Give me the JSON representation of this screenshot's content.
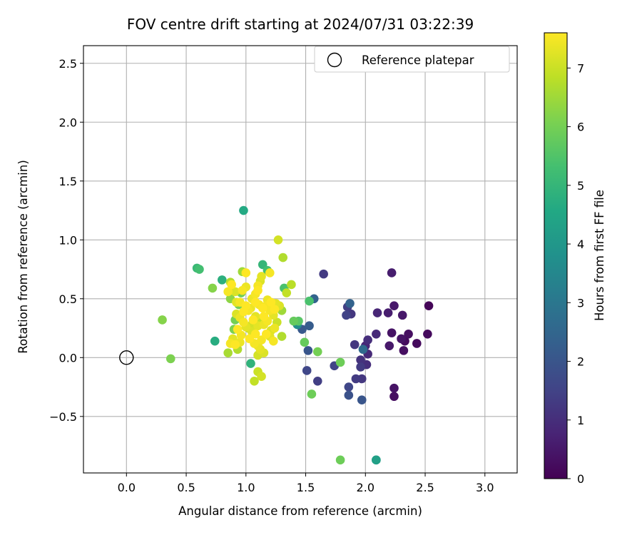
{
  "chart_data": {
    "type": "scatter",
    "title": "FOV centre drift starting at 2024/07/31 03:22:39",
    "xlabel": "Angular distance from reference (arcmin)",
    "ylabel": "Rotation from reference (arcmin)",
    "xlim": [
      -0.36,
      3.27
    ],
    "ylim": [
      -0.98,
      2.65
    ],
    "xticks": [
      "0.0",
      "0.5",
      "1.0",
      "1.5",
      "2.0",
      "2.5",
      "3.0"
    ],
    "yticks": [
      "−0.5",
      "0.0",
      "0.5",
      "1.0",
      "1.5",
      "2.0",
      "2.5"
    ],
    "grid": true,
    "legend": {
      "label": "Reference platepar",
      "placement": "top-right",
      "marker": "open-circle"
    },
    "reference_point": {
      "x": 0.0,
      "y": 0.0
    },
    "colorbar": {
      "label": "Hours from first FF file",
      "colormap": "viridis",
      "ticks": [
        "0",
        "1",
        "2",
        "3",
        "4",
        "5",
        "6",
        "7"
      ],
      "range": [
        0,
        7.6
      ]
    },
    "series": [
      {
        "points": [
          [
            2.53,
            0.44,
            0.1
          ],
          [
            2.52,
            0.2,
            0.2
          ],
          [
            2.43,
            0.12,
            0.2
          ],
          [
            2.36,
            0.2,
            0.3
          ],
          [
            2.33,
            0.14,
            0.2
          ],
          [
            2.32,
            0.06,
            0.3
          ],
          [
            2.3,
            0.16,
            0.4
          ],
          [
            2.24,
            0.44,
            0.5
          ],
          [
            2.22,
            0.72,
            0.6
          ],
          [
            2.22,
            0.21,
            0.4
          ],
          [
            2.31,
            0.36,
            0.5
          ],
          [
            2.19,
            0.38,
            0.6
          ],
          [
            2.2,
            0.1,
            0.5
          ],
          [
            2.24,
            -0.26,
            0.4
          ],
          [
            2.24,
            -0.33,
            0.3
          ],
          [
            2.1,
            0.38,
            0.8
          ],
          [
            2.09,
            0.2,
            0.9
          ],
          [
            2.02,
            0.15,
            1.0
          ],
          [
            2.0,
            0.1,
            0.8
          ],
          [
            2.02,
            0.03,
            0.9
          ],
          [
            2.01,
            -0.06,
            1.0
          ],
          [
            1.96,
            -0.02,
            1.1
          ],
          [
            1.97,
            -0.18,
            1.2
          ],
          [
            1.96,
            -0.08,
            1.3
          ],
          [
            1.92,
            -0.18,
            1.3
          ],
          [
            1.91,
            0.11,
            1.2
          ],
          [
            1.88,
            0.37,
            1.2
          ],
          [
            1.85,
            0.43,
            1.4
          ],
          [
            1.84,
            0.36,
            1.5
          ],
          [
            1.86,
            -0.25,
            1.6
          ],
          [
            1.86,
            -0.32,
            1.9
          ],
          [
            1.97,
            -0.36,
            2.0
          ],
          [
            1.87,
            0.46,
            2.4
          ],
          [
            1.98,
            0.07,
            2.6
          ],
          [
            1.74,
            -0.07,
            1.5
          ],
          [
            1.65,
            0.71,
            1.3
          ],
          [
            1.6,
            -0.2,
            1.4
          ],
          [
            1.51,
            -0.11,
            1.6
          ],
          [
            1.52,
            0.06,
            2.0
          ],
          [
            1.53,
            0.27,
            2.2
          ],
          [
            1.57,
            0.5,
            2.4
          ],
          [
            1.47,
            0.24,
            2.1
          ],
          [
            1.43,
            0.28,
            3.7
          ],
          [
            2.09,
            -0.87,
            4.0
          ],
          [
            2.09,
            -0.87,
            4.3
          ],
          [
            0.98,
            1.25,
            4.6
          ],
          [
            0.74,
            0.14,
            4.7
          ],
          [
            1.04,
            -0.05,
            4.9
          ],
          [
            0.8,
            0.66,
            4.8
          ],
          [
            0.59,
            0.76,
            5.1
          ],
          [
            1.14,
            0.79,
            5.0
          ],
          [
            1.18,
            0.74,
            5.3
          ],
          [
            0.61,
            0.75,
            5.3
          ],
          [
            1.53,
            0.48,
            5.4
          ],
          [
            1.32,
            0.59,
            5.4
          ],
          [
            1.44,
            0.31,
            5.6
          ],
          [
            1.4,
            0.31,
            5.8
          ],
          [
            1.49,
            0.13,
            5.8
          ],
          [
            1.79,
            -0.04,
            5.9
          ],
          [
            1.55,
            -0.31,
            5.9
          ],
          [
            1.79,
            -0.87,
            5.9
          ],
          [
            1.6,
            0.05,
            6.0
          ],
          [
            0.37,
            -0.01,
            6.1
          ],
          [
            0.3,
            0.32,
            6.2
          ],
          [
            0.72,
            0.59,
            6.2
          ],
          [
            0.87,
            0.5,
            6.3
          ],
          [
            0.91,
            0.32,
            6.0
          ],
          [
            0.9,
            0.24,
            6.1
          ],
          [
            0.96,
            0.55,
            5.9
          ],
          [
            0.94,
            0.45,
            6.0
          ],
          [
            1.31,
            0.85,
            6.7
          ],
          [
            1.27,
            1.0,
            7.1
          ],
          [
            1.38,
            0.62,
            6.8
          ],
          [
            1.34,
            0.55,
            6.9
          ],
          [
            1.3,
            0.4,
            6.5
          ],
          [
            1.3,
            0.18,
            6.7
          ],
          [
            0.97,
            0.73,
            6.5
          ],
          [
            0.87,
            0.64,
            6.7
          ],
          [
            0.85,
            0.04,
            6.6
          ],
          [
            0.93,
            0.07,
            6.7
          ],
          [
            1.07,
            -0.2,
            6.9
          ],
          [
            1.1,
            -0.12,
            7.0
          ],
          [
            1.13,
            -0.16,
            7.1
          ],
          [
            1.1,
            0.02,
            7.1
          ],
          [
            1.15,
            0.04,
            7.2
          ],
          [
            1.02,
            0.25,
            6.8
          ],
          [
            1.05,
            0.28,
            7.1
          ],
          [
            1.11,
            0.32,
            6.9
          ],
          [
            1.08,
            0.35,
            7.3
          ],
          [
            1.15,
            0.28,
            7.4
          ],
          [
            1.18,
            0.31,
            7.5
          ],
          [
            1.21,
            0.23,
            7.2
          ],
          [
            1.24,
            0.25,
            7.4
          ],
          [
            1.26,
            0.3,
            7.0
          ],
          [
            1.23,
            0.36,
            7.3
          ],
          [
            1.2,
            0.4,
            7.5
          ],
          [
            1.24,
            0.41,
            7.6
          ],
          [
            1.28,
            0.44,
            7.2
          ],
          [
            1.25,
            0.46,
            7.3
          ],
          [
            1.21,
            0.47,
            7.6
          ],
          [
            1.18,
            0.49,
            7.4
          ],
          [
            1.17,
            0.44,
            7.5
          ],
          [
            1.14,
            0.42,
            7.6
          ],
          [
            1.11,
            0.45,
            7.5
          ],
          [
            1.08,
            0.47,
            7.6
          ],
          [
            1.05,
            0.5,
            7.4
          ],
          [
            1.08,
            0.54,
            7.5
          ],
          [
            1.1,
            0.57,
            7.6
          ],
          [
            1.1,
            0.61,
            7.5
          ],
          [
            1.12,
            0.65,
            7.2
          ],
          [
            1.13,
            0.69,
            7.3
          ],
          [
            1.2,
            0.72,
            7.5
          ],
          [
            1.0,
            0.72,
            7.6
          ],
          [
            1.0,
            0.6,
            7.4
          ],
          [
            0.97,
            0.57,
            7.5
          ],
          [
            0.95,
            0.47,
            7.5
          ],
          [
            0.92,
            0.47,
            7.3
          ],
          [
            0.91,
            0.56,
            7.2
          ],
          [
            0.85,
            0.56,
            7.5
          ],
          [
            0.88,
            0.62,
            7.6
          ],
          [
            0.92,
            0.37,
            7.2
          ],
          [
            0.95,
            0.34,
            7.4
          ],
          [
            0.98,
            0.3,
            7.5
          ],
          [
            1.0,
            0.26,
            7.3
          ],
          [
            0.98,
            0.39,
            7.6
          ],
          [
            1.02,
            0.4,
            7.5
          ],
          [
            1.04,
            0.42,
            7.4
          ],
          [
            1.0,
            0.44,
            7.6
          ],
          [
            0.93,
            0.24,
            7.6
          ],
          [
            0.96,
            0.19,
            7.5
          ],
          [
            0.89,
            0.16,
            7.3
          ],
          [
            0.87,
            0.12,
            7.5
          ],
          [
            0.91,
            0.11,
            7.6
          ],
          [
            0.95,
            0.13,
            7.4
          ],
          [
            1.03,
            0.16,
            7.6
          ],
          [
            1.07,
            0.12,
            7.5
          ],
          [
            1.1,
            0.1,
            7.4
          ],
          [
            1.12,
            0.07,
            7.3
          ],
          [
            1.13,
            0.15,
            7.5
          ],
          [
            1.08,
            0.2,
            7.6
          ],
          [
            1.05,
            0.22,
            7.2
          ],
          [
            1.17,
            0.2,
            7.6
          ],
          [
            1.2,
            0.18,
            7.3
          ],
          [
            1.23,
            0.14,
            7.5
          ],
          [
            1.1,
            0.27,
            7.3
          ],
          [
            1.15,
            0.35,
            7.6
          ],
          [
            1.06,
            0.32,
            7.6
          ]
        ]
      }
    ]
  }
}
